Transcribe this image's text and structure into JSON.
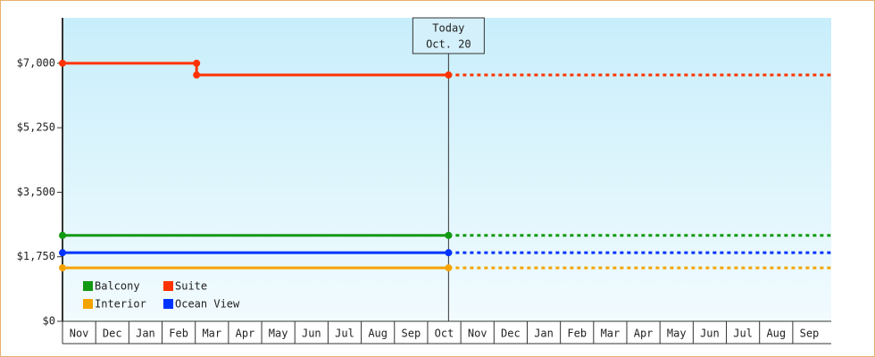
{
  "chart_data": {
    "type": "step-line",
    "xlim": [
      0,
      23.16
    ],
    "ylim": [
      0,
      8230
    ],
    "xticks": [
      {
        "value": 0,
        "label": "Nov"
      },
      {
        "value": 1,
        "label": "Dec"
      },
      {
        "value": 2,
        "label": "Jan"
      },
      {
        "value": 3,
        "label": "Feb"
      },
      {
        "value": 4,
        "label": "Mar"
      },
      {
        "value": 5,
        "label": "Apr"
      },
      {
        "value": 6,
        "label": "May"
      },
      {
        "value": 7,
        "label": "Jun"
      },
      {
        "value": 8,
        "label": "Jul"
      },
      {
        "value": 9,
        "label": "Aug"
      },
      {
        "value": 10,
        "label": "Sep"
      },
      {
        "value": 11,
        "label": "Oct"
      },
      {
        "value": 12,
        "label": "Nov"
      },
      {
        "value": 13,
        "label": "Dec"
      },
      {
        "value": 14,
        "label": "Jan"
      },
      {
        "value": 15,
        "label": "Feb"
      },
      {
        "value": 16,
        "label": "Mar"
      },
      {
        "value": 17,
        "label": "Apr"
      },
      {
        "value": 18,
        "label": "May"
      },
      {
        "value": 19,
        "label": "Jun"
      },
      {
        "value": 20,
        "label": "Jul"
      },
      {
        "value": 21,
        "label": "Aug"
      },
      {
        "value": 22,
        "label": "Sep"
      }
    ],
    "yticks": [
      {
        "value": 0,
        "label": "$0"
      },
      {
        "value": 1750,
        "label": "$1,750"
      },
      {
        "value": 3500,
        "label": "$3,500"
      },
      {
        "value": 5250,
        "label": "$5,250"
      },
      {
        "value": 7000,
        "label": "$7,000"
      }
    ],
    "today": {
      "x": 11.63,
      "label": [
        "Today",
        "Oct. 20"
      ]
    },
    "projection": "dashed",
    "series": [
      {
        "name": "Balcony",
        "color": "#119911",
        "x": [
          0,
          11.63
        ],
        "values": [
          2330,
          2330
        ]
      },
      {
        "name": "Suite",
        "color": "#ff3300",
        "x": [
          0,
          4.04,
          4.04,
          11.63
        ],
        "values": [
          7000,
          7000,
          6680,
          6680
        ]
      },
      {
        "name": "Interior",
        "color": "#f5a300",
        "x": [
          0,
          11.63
        ],
        "values": [
          1450,
          1450
        ]
      },
      {
        "name": "Ocean View",
        "color": "#0033ff",
        "x": [
          0,
          11.63
        ],
        "values": [
          1860,
          1860
        ]
      }
    ]
  }
}
